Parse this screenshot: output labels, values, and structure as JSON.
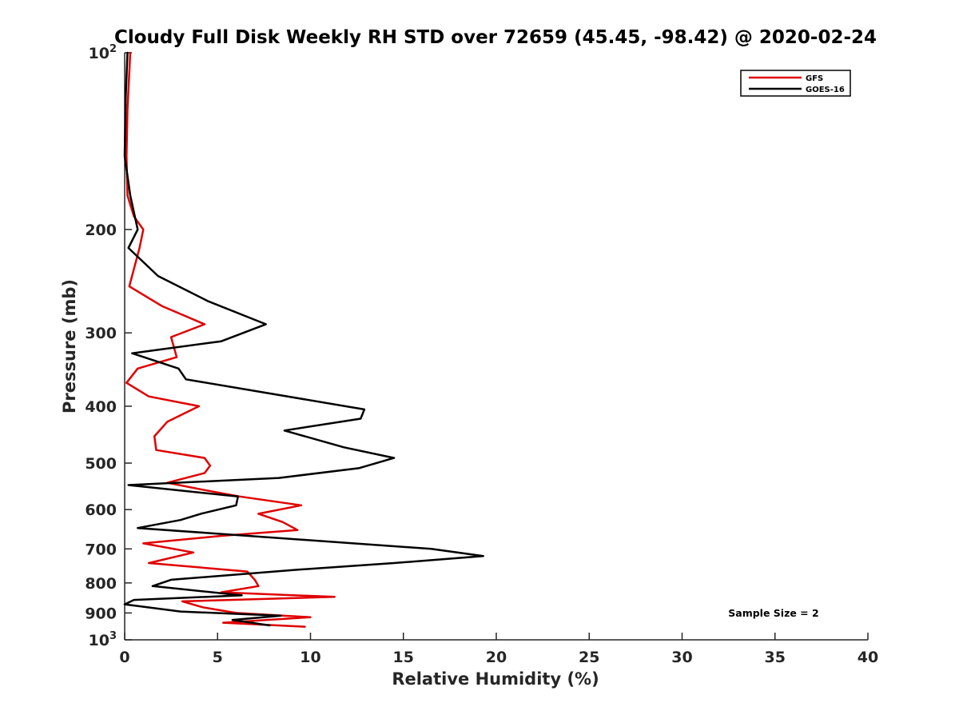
{
  "chart_data": {
    "type": "line",
    "title": "Cloudy Full Disk Weekly RH STD over 72659 (45.45, -98.42) @ 2020-02-24",
    "xlabel": "Relative Humidity (%)",
    "ylabel": "Pressure (mb)",
    "xlim": [
      0,
      40
    ],
    "ylim": [
      100,
      1000
    ],
    "y_scale": "log",
    "y_reversed": true,
    "x_ticks": [
      "0",
      "5",
      "10",
      "15",
      "20",
      "25",
      "30",
      "35",
      "40"
    ],
    "y_ticks": [
      {
        "value": 100,
        "base": "10",
        "exp": "2"
      },
      {
        "value": 200,
        "label": "200"
      },
      {
        "value": 300,
        "label": "300"
      },
      {
        "value": 400,
        "label": "400"
      },
      {
        "value": 500,
        "label": "500"
      },
      {
        "value": 600,
        "label": "600"
      },
      {
        "value": 700,
        "label": "700"
      },
      {
        "value": 800,
        "label": "800"
      },
      {
        "value": 900,
        "label": "900"
      },
      {
        "value": 1000,
        "base": "10",
        "exp": "3"
      }
    ],
    "grid": false,
    "legend_position": "top-right",
    "annotation": "Sample Size = 2",
    "series": [
      {
        "name": "GFS",
        "color": "#e00000",
        "points": [
          [
            0.3,
            100
          ],
          [
            0.15,
            125
          ],
          [
            0.1,
            150
          ],
          [
            0.15,
            175
          ],
          [
            0.5,
            190
          ],
          [
            1.0,
            200
          ],
          [
            0.8,
            215
          ],
          [
            0.25,
            250
          ],
          [
            2.0,
            270
          ],
          [
            4.3,
            290
          ],
          [
            2.5,
            305
          ],
          [
            2.8,
            330
          ],
          [
            0.7,
            345
          ],
          [
            0.1,
            365
          ],
          [
            1.3,
            385
          ],
          [
            4.0,
            400
          ],
          [
            2.3,
            425
          ],
          [
            1.6,
            450
          ],
          [
            1.7,
            475
          ],
          [
            4.3,
            490
          ],
          [
            4.6,
            505
          ],
          [
            4.3,
            520
          ],
          [
            2.3,
            540
          ],
          [
            4.2,
            555
          ],
          [
            6.2,
            570
          ],
          [
            9.5,
            590
          ],
          [
            7.2,
            610
          ],
          [
            8.5,
            630
          ],
          [
            9.3,
            650
          ],
          [
            5.2,
            665
          ],
          [
            1.0,
            685
          ],
          [
            3.7,
            710
          ],
          [
            1.3,
            740
          ],
          [
            6.6,
            765
          ],
          [
            7.0,
            790
          ],
          [
            7.2,
            810
          ],
          [
            5.2,
            830
          ],
          [
            11.3,
            845
          ],
          [
            3.1,
            860
          ],
          [
            4.2,
            880
          ],
          [
            6.0,
            900
          ],
          [
            10.0,
            915
          ],
          [
            5.3,
            935
          ],
          [
            9.7,
            950
          ]
        ]
      },
      {
        "name": "GOES-16",
        "color": "#000000",
        "points": [
          [
            0.15,
            100
          ],
          [
            0.05,
            120
          ],
          [
            0.0,
            150
          ],
          [
            0.3,
            175
          ],
          [
            0.7,
            200
          ],
          [
            0.2,
            215
          ],
          [
            1.8,
            240
          ],
          [
            4.5,
            265
          ],
          [
            7.6,
            290
          ],
          [
            5.2,
            310
          ],
          [
            0.4,
            325
          ],
          [
            2.9,
            345
          ],
          [
            3.3,
            360
          ],
          [
            12.9,
            405
          ],
          [
            12.7,
            420
          ],
          [
            8.6,
            440
          ],
          [
            11.8,
            470
          ],
          [
            14.5,
            490
          ],
          [
            12.6,
            510
          ],
          [
            8.3,
            530
          ],
          [
            0.2,
            545
          ],
          [
            6.1,
            570
          ],
          [
            6.0,
            590
          ],
          [
            4.1,
            610
          ],
          [
            3.0,
            625
          ],
          [
            0.7,
            645
          ],
          [
            9.5,
            675
          ],
          [
            16.5,
            700
          ],
          [
            19.3,
            720
          ],
          [
            14.5,
            740
          ],
          [
            9.2,
            760
          ],
          [
            2.5,
            790
          ],
          [
            1.5,
            810
          ],
          [
            6.3,
            840
          ],
          [
            0.5,
            855
          ],
          [
            0.0,
            870
          ],
          [
            3.0,
            895
          ],
          [
            8.4,
            910
          ],
          [
            5.8,
            925
          ],
          [
            7.8,
            945
          ]
        ]
      }
    ]
  }
}
